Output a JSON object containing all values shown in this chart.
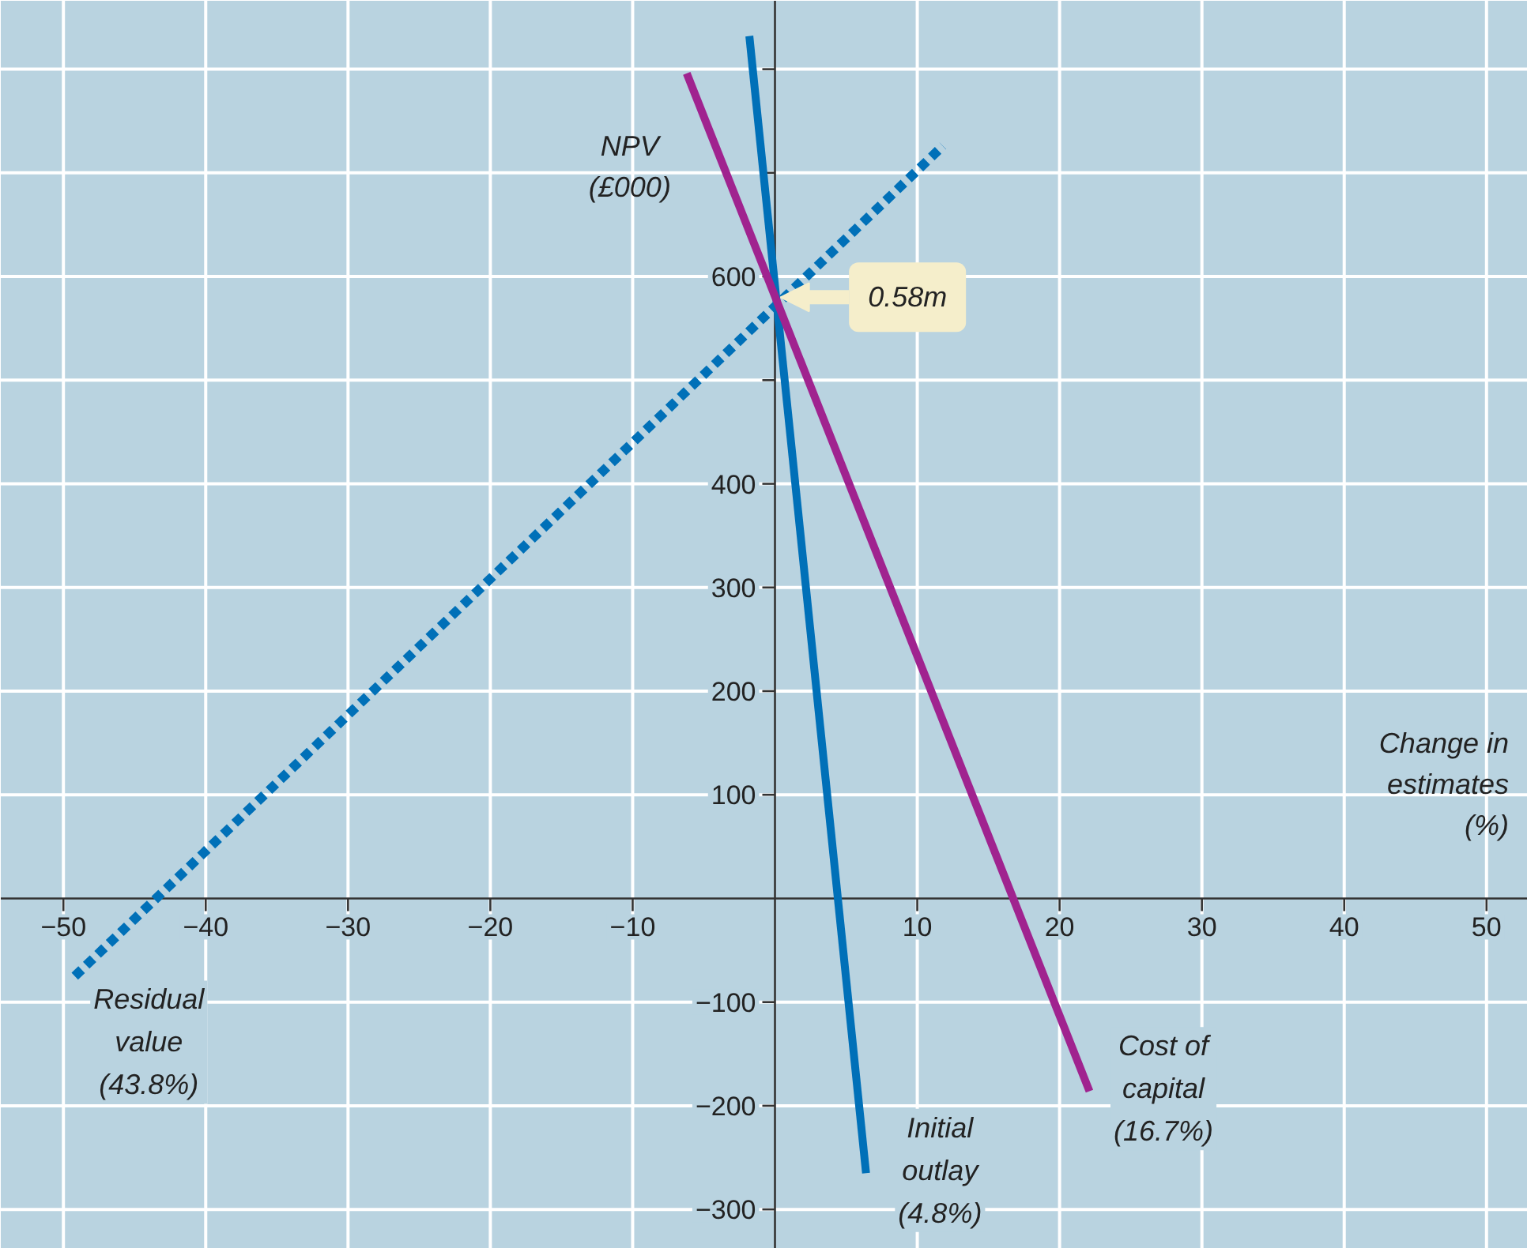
{
  "chart_data": {
    "type": "line",
    "xlabel": "Change in\nestimates\n(%)",
    "ylabel": "NPV\n(£000)",
    "xlim": [
      -54.4,
      52.9
    ],
    "ylim": [
      -338,
      866
    ],
    "xticks": [
      {
        "value": -50,
        "label": "−50"
      },
      {
        "value": -40,
        "label": "−40"
      },
      {
        "value": -30,
        "label": "−30"
      },
      {
        "value": -20,
        "label": "−20"
      },
      {
        "value": -10,
        "label": "−10"
      },
      10,
      20,
      30,
      40,
      50
    ],
    "yticks": [
      {
        "value": -300,
        "label": "−300"
      },
      {
        "value": -200,
        "label": "−200"
      },
      {
        "value": -100,
        "label": "−100"
      },
      100,
      200,
      300,
      400,
      {
        "value": 500,
        "label": null
      },
      600,
      {
        "value": 700,
        "label": null
      },
      {
        "value": 800,
        "label": null
      }
    ],
    "grid": true,
    "annotations": [
      {
        "text": "0.58m",
        "x": 0,
        "y": 580
      }
    ],
    "series": [
      {
        "name": "Residual\nvalue\n(43.8%)",
        "color": "#0070b8",
        "line_style": "dotted",
        "x": [
          -49.2,
          11.8
        ],
        "values": [
          -75,
          726
        ]
      },
      {
        "name": "Initial\noutlay\n(4.8%)",
        "color": "#0070b8",
        "line_style": "solid",
        "x": [
          -1.8,
          6.4
        ],
        "values": [
          832,
          -265
        ]
      },
      {
        "name": "Cost of\ncapital\n(16.7%)",
        "color": "#a0238f",
        "line_style": "solid",
        "x": [
          -6.2,
          22.1
        ],
        "values": [
          796,
          -186
        ]
      }
    ]
  }
}
